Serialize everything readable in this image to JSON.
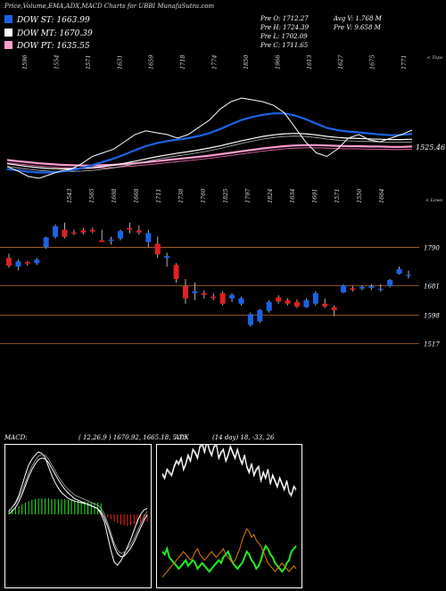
{
  "header": {
    "title": "Price,Volume,EMA,ADX,MACD Charts for UBBI MunafaSutra.com"
  },
  "legend": [
    {
      "label": "DOW ST: 1663.99",
      "color": "#1b63e6"
    },
    {
      "label": "DOW MT: 1670.39",
      "color": "#ffffff"
    },
    {
      "label": "DOW PT: 1635.55",
      "color": "#ff9ccf"
    }
  ],
  "stats": {
    "o": "Pre   O: 1712.27",
    "h": "Pre   H: 1724.39",
    "l": "Pre   L: 1702.09",
    "c": "Pre   C: 1711.65",
    "avgv": "Avg V: 1.768 M",
    "prev": "Pre   V: 9.658  M"
  },
  "colors": {
    "up": "#1b63e6",
    "down": "#e02020",
    "priceLine": "#ffffff",
    "ema_short": "#1b63e6",
    "ema_mid": "#ffffff",
    "ema_long": "#ff9ccf",
    "level": "#b8672a",
    "macdPos": "#22ee22",
    "macdNeg": "#ee2222",
    "adxWhite": "#ffffff",
    "adxGreen": "#22ee22",
    "adxOrange": "#e07a10"
  },
  "chart_data": [
    {
      "type": "line",
      "name": "ema-panel",
      "top_label": "< Tops",
      "last_label": "1525.46",
      "top_tick_labels": [
        "1596",
        "1554",
        "1571",
        "1631",
        "1659",
        "1718",
        "1774",
        "1850",
        "1966",
        "1613",
        "1627",
        "1675",
        "1771"
      ],
      "series": [
        {
          "name": "price",
          "values": [
            1612,
            1600,
            1585,
            1580,
            1590,
            1600,
            1605,
            1620,
            1640,
            1650,
            1660,
            1680,
            1700,
            1710,
            1705,
            1700,
            1690,
            1700,
            1720,
            1740,
            1770,
            1790,
            1800,
            1795,
            1790,
            1780,
            1760,
            1720,
            1680,
            1650,
            1640,
            1660,
            1690,
            1700,
            1685,
            1680,
            1690,
            1700,
            1712
          ]
        },
        {
          "name": "ema_short",
          "values": [
            1605,
            1602,
            1598,
            1596,
            1596,
            1598,
            1602,
            1608,
            1616,
            1625,
            1634,
            1645,
            1657,
            1668,
            1676,
            1682,
            1686,
            1690,
            1696,
            1704,
            1715,
            1728,
            1740,
            1748,
            1754,
            1758,
            1758,
            1752,
            1742,
            1730,
            1718,
            1712,
            1708,
            1706,
            1703,
            1700,
            1698,
            1699,
            1702
          ]
        },
        {
          "name": "ema_mid",
          "values": [
            1620,
            1616,
            1612,
            1609,
            1607,
            1606,
            1606,
            1607,
            1609,
            1612,
            1616,
            1621,
            1627,
            1633,
            1639,
            1644,
            1649,
            1653,
            1658,
            1663,
            1669,
            1676,
            1683,
            1689,
            1695,
            1699,
            1702,
            1703,
            1702,
            1699,
            1695,
            1692,
            1690,
            1689,
            1688,
            1687,
            1686,
            1686,
            1687
          ]
        },
        {
          "name": "ema_long",
          "values": [
            1630,
            1627,
            1624,
            1621,
            1619,
            1617,
            1616,
            1615,
            1615,
            1616,
            1617,
            1619,
            1621,
            1624,
            1627,
            1630,
            1633,
            1636,
            1639,
            1642,
            1646,
            1650,
            1654,
            1658,
            1662,
            1665,
            1668,
            1670,
            1671,
            1671,
            1670,
            1669,
            1668,
            1668,
            1667,
            1667,
            1666,
            1666,
            1667
          ]
        }
      ]
    },
    {
      "type": "candlestick",
      "name": "price-panel",
      "top_label": "< Lows",
      "low_tick_labels": [
        "1543",
        "1565",
        "1608",
        "1668",
        "1711",
        "1738",
        "1760",
        "1825",
        "1797",
        "1824",
        "1634",
        "1601",
        "1571",
        "1550",
        "1664"
      ],
      "levels": [
        1790,
        1681,
        1598,
        1517
      ],
      "ylim": [
        1480,
        1910
      ],
      "candles": [
        {
          "o": 1760,
          "h": 1772,
          "l": 1732,
          "c": 1738
        },
        {
          "o": 1735,
          "h": 1755,
          "l": 1725,
          "c": 1750
        },
        {
          "o": 1748,
          "h": 1752,
          "l": 1738,
          "c": 1744
        },
        {
          "o": 1745,
          "h": 1760,
          "l": 1740,
          "c": 1755
        },
        {
          "o": 1790,
          "h": 1820,
          "l": 1786,
          "c": 1818
        },
        {
          "o": 1820,
          "h": 1855,
          "l": 1815,
          "c": 1850
        },
        {
          "o": 1840,
          "h": 1860,
          "l": 1815,
          "c": 1820
        },
        {
          "o": 1832,
          "h": 1840,
          "l": 1825,
          "c": 1830
        },
        {
          "o": 1838,
          "h": 1845,
          "l": 1826,
          "c": 1832
        },
        {
          "o": 1840,
          "h": 1846,
          "l": 1830,
          "c": 1835
        },
        {
          "o": 1810,
          "h": 1840,
          "l": 1805,
          "c": 1805
        },
        {
          "o": 1808,
          "h": 1820,
          "l": 1798,
          "c": 1812
        },
        {
          "o": 1815,
          "h": 1840,
          "l": 1810,
          "c": 1836
        },
        {
          "o": 1845,
          "h": 1860,
          "l": 1830,
          "c": 1840
        },
        {
          "o": 1838,
          "h": 1852,
          "l": 1826,
          "c": 1832
        },
        {
          "o": 1805,
          "h": 1840,
          "l": 1790,
          "c": 1830
        },
        {
          "o": 1800,
          "h": 1820,
          "l": 1760,
          "c": 1770
        },
        {
          "o": 1760,
          "h": 1775,
          "l": 1735,
          "c": 1765
        },
        {
          "o": 1740,
          "h": 1745,
          "l": 1690,
          "c": 1700
        },
        {
          "o": 1680,
          "h": 1700,
          "l": 1630,
          "c": 1645
        },
        {
          "o": 1660,
          "h": 1690,
          "l": 1640,
          "c": 1665
        },
        {
          "o": 1660,
          "h": 1668,
          "l": 1645,
          "c": 1655
        },
        {
          "o": 1650,
          "h": 1660,
          "l": 1640,
          "c": 1646
        },
        {
          "o": 1660,
          "h": 1665,
          "l": 1625,
          "c": 1630
        },
        {
          "o": 1645,
          "h": 1660,
          "l": 1635,
          "c": 1655
        },
        {
          "o": 1630,
          "h": 1650,
          "l": 1625,
          "c": 1645
        },
        {
          "o": 1570,
          "h": 1605,
          "l": 1565,
          "c": 1600
        },
        {
          "o": 1580,
          "h": 1615,
          "l": 1575,
          "c": 1612
        },
        {
          "o": 1610,
          "h": 1640,
          "l": 1605,
          "c": 1635
        },
        {
          "o": 1648,
          "h": 1654,
          "l": 1630,
          "c": 1636
        },
        {
          "o": 1640,
          "h": 1645,
          "l": 1625,
          "c": 1630
        },
        {
          "o": 1635,
          "h": 1642,
          "l": 1618,
          "c": 1622
        },
        {
          "o": 1620,
          "h": 1645,
          "l": 1618,
          "c": 1640
        },
        {
          "o": 1630,
          "h": 1665,
          "l": 1625,
          "c": 1660
        },
        {
          "o": 1630,
          "h": 1645,
          "l": 1618,
          "c": 1622
        },
        {
          "o": 1620,
          "h": 1625,
          "l": 1595,
          "c": 1612
        },
        {
          "o": 1662,
          "h": 1685,
          "l": 1660,
          "c": 1682
        },
        {
          "o": 1674,
          "h": 1680,
          "l": 1665,
          "c": 1670
        },
        {
          "o": 1673,
          "h": 1682,
          "l": 1668,
          "c": 1678
        },
        {
          "o": 1675,
          "h": 1686,
          "l": 1668,
          "c": 1680
        },
        {
          "o": 1670,
          "h": 1685,
          "l": 1664,
          "c": 1672
        },
        {
          "o": 1680,
          "h": 1700,
          "l": 1676,
          "c": 1697
        },
        {
          "o": 1715,
          "h": 1735,
          "l": 1713,
          "c": 1728
        },
        {
          "o": 1712,
          "h": 1724,
          "l": 1702,
          "c": 1712
        }
      ]
    },
    {
      "type": "line",
      "name": "macd-panel",
      "label": "MACD:",
      "params": "( 12,26,9 ) 1670.92,  1665.18,  5.73",
      "series": [
        {
          "name": "histogram",
          "values": [
            5,
            7,
            9,
            11,
            14,
            16,
            18,
            20,
            21,
            22,
            22,
            22,
            22,
            21,
            21,
            21,
            21,
            21,
            20,
            20,
            19,
            19,
            18,
            18,
            17,
            17,
            16,
            16,
            15,
            -1,
            -4,
            -7,
            -10,
            -12,
            -14,
            -15,
            -16,
            -15,
            -14,
            -13,
            -12,
            -11,
            -10
          ]
        },
        {
          "name": "macd",
          "values": [
            4,
            10,
            16,
            26,
            40,
            55,
            68,
            76,
            82,
            86,
            84,
            78,
            66,
            54,
            44,
            36,
            30,
            26,
            22,
            20,
            18,
            17,
            16,
            15,
            14,
            12,
            10,
            8,
            0,
            -10,
            -30,
            -50,
            -66,
            -70,
            -64,
            -55,
            -45,
            -35,
            -22,
            -10,
            0,
            6,
            8
          ]
        },
        {
          "name": "signal",
          "values": [
            3,
            7,
            12,
            20,
            30,
            42,
            54,
            64,
            72,
            78,
            80,
            79,
            74,
            66,
            58,
            50,
            43,
            37,
            32,
            28,
            24,
            22,
            20,
            18,
            16,
            14,
            12,
            10,
            6,
            -2,
            -14,
            -28,
            -42,
            -52,
            -56,
            -55,
            -50,
            -44,
            -36,
            -26,
            -16,
            -6,
            2
          ]
        }
      ]
    },
    {
      "type": "line",
      "name": "adx-panel",
      "label": "ADX",
      "params": "(14  day) 18,  -33,  26",
      "series": [
        {
          "name": "adx",
          "values": [
            55,
            52,
            58,
            56,
            54,
            60,
            64,
            62,
            66,
            58,
            62,
            68,
            64,
            72,
            70,
            66,
            74,
            76,
            70,
            78,
            72,
            68,
            74,
            76,
            66,
            70,
            72,
            64,
            68,
            74,
            70,
            66,
            72,
            66,
            62,
            68,
            60,
            56,
            62,
            54,
            58,
            60,
            50,
            56,
            52,
            58,
            48,
            54,
            50,
            46,
            52,
            48,
            44,
            50,
            42,
            40,
            46,
            44
          ]
        },
        {
          "name": "plus_di",
          "values": [
            22,
            20,
            24,
            18,
            16,
            14,
            12,
            10,
            12,
            14,
            16,
            12,
            14,
            16,
            14,
            10,
            12,
            14,
            12,
            10,
            8,
            10,
            12,
            14,
            16,
            14,
            18,
            20,
            22,
            18,
            14,
            12,
            10,
            12,
            14,
            18,
            22,
            20,
            16,
            14,
            10,
            12,
            16,
            22,
            26,
            24,
            20,
            18,
            14,
            12,
            10,
            8,
            10,
            14,
            16,
            22,
            24,
            26
          ]
        },
        {
          "name": "minus_di",
          "values": [
            4,
            6,
            8,
            10,
            12,
            14,
            16,
            18,
            20,
            22,
            20,
            18,
            16,
            18,
            22,
            24,
            20,
            18,
            16,
            18,
            20,
            22,
            20,
            18,
            20,
            22,
            24,
            20,
            18,
            16,
            14,
            16,
            20,
            24,
            30,
            34,
            38,
            36,
            32,
            34,
            30,
            28,
            26,
            22,
            18,
            14,
            12,
            10,
            8,
            10,
            12,
            14,
            12,
            10,
            8,
            10,
            12,
            10
          ]
        }
      ]
    }
  ]
}
